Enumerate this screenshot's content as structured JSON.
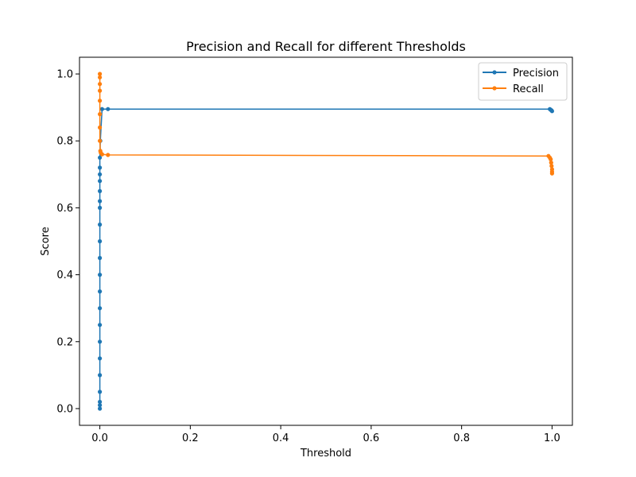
{
  "chart_data": {
    "type": "line",
    "title": "Precision and Recall for different Thresholds",
    "xlabel": "Threshold",
    "ylabel": "Score",
    "xlim": [
      -0.045,
      1.045
    ],
    "ylim": [
      -0.05,
      1.05
    ],
    "xticks": [
      0.0,
      0.2,
      0.4,
      0.6,
      0.8,
      1.0
    ],
    "xtick_labels": [
      "0.0",
      "0.2",
      "0.4",
      "0.6",
      "0.8",
      "1.0"
    ],
    "yticks": [
      0.0,
      0.2,
      0.4,
      0.6,
      0.8,
      1.0
    ],
    "ytick_labels": [
      "0.0",
      "0.2",
      "0.4",
      "0.6",
      "0.8",
      "1.0"
    ],
    "grid": false,
    "legend": {
      "placement": "top-right"
    },
    "series": [
      {
        "name": "Precision",
        "color": "#1f77b4",
        "marker": "circle",
        "x": [
          0,
          0,
          0,
          0,
          0,
          0,
          0,
          0,
          0,
          0,
          0,
          0,
          0,
          0,
          0,
          0,
          0,
          0,
          0,
          0,
          0,
          0.001,
          0.005,
          0.018,
          0.995,
          0.997,
          0.999,
          1.0
        ],
        "y": [
          0.0,
          0.01,
          0.02,
          0.05,
          0.1,
          0.15,
          0.2,
          0.25,
          0.3,
          0.35,
          0.4,
          0.45,
          0.5,
          0.55,
          0.6,
          0.62,
          0.65,
          0.68,
          0.7,
          0.72,
          0.75,
          0.8,
          0.895,
          0.895,
          0.895,
          0.893,
          0.891,
          0.889
        ]
      },
      {
        "name": "Recall",
        "color": "#ff7f0e",
        "marker": "circle",
        "x": [
          0,
          0,
          0,
          0,
          0,
          0,
          0,
          0,
          0.001,
          0.002,
          0.005,
          0.018,
          0.992,
          0.995,
          0.997,
          0.998,
          0.999,
          1.0,
          1.0,
          1.0
        ],
        "y": [
          1.0,
          0.99,
          0.97,
          0.95,
          0.92,
          0.88,
          0.84,
          0.8,
          0.77,
          0.765,
          0.76,
          0.758,
          0.755,
          0.75,
          0.745,
          0.735,
          0.725,
          0.715,
          0.708,
          0.703
        ]
      }
    ]
  }
}
